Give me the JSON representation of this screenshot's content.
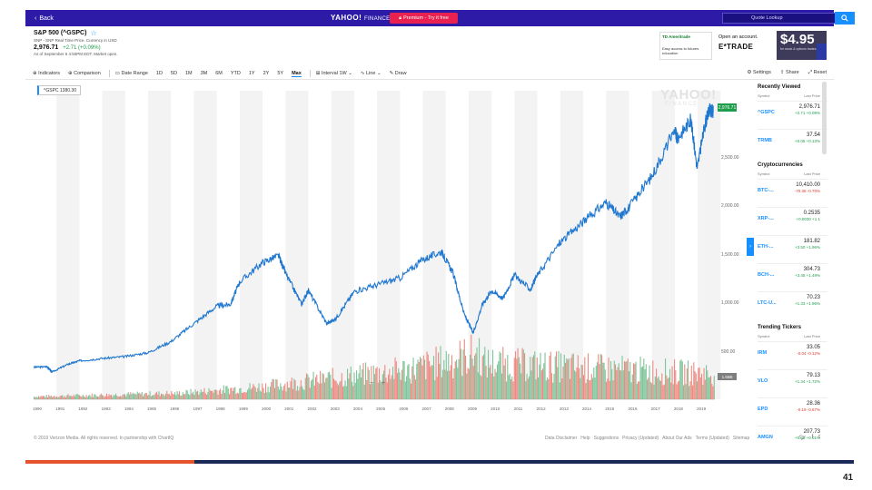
{
  "topbar": {
    "back_label": "Back",
    "logo_text": "YAHOO!",
    "logo_suffix": "FINANCE",
    "premium_label": "Premium - Try it free",
    "search_placeholder": "Quote Lookup"
  },
  "quote": {
    "title": "S&P 500 (^GSPC)",
    "subtitle": "SNP - SNP Real Time Price. Currency in USD",
    "price": "2,976.71",
    "change": "+2.71 (+0.09%)",
    "as_of": "As of September 6 4:50PM EDT. Market open."
  },
  "ads": {
    "ad1_logo": "TD Ameritrade",
    "ad1_text": "Easy access to futures education",
    "ad2_line1": "Open an account.",
    "ad2_brand": "E*TRADE",
    "ad3_price": "$4.95",
    "ad3_note": "for stock & options trades"
  },
  "toolbar": {
    "items": [
      "Indicators",
      "Comparison",
      "Date Range",
      "1D",
      "5D",
      "1M",
      "3M",
      "6M",
      "YTD",
      "1Y",
      "2Y",
      "5Y",
      "Max",
      "Interval 1W",
      "Line",
      "Draw"
    ],
    "active": "Max",
    "right": [
      "Settings",
      "Share",
      "Reset"
    ]
  },
  "chart": {
    "legend_label": "^GSPC 1380.30",
    "watermark_top": "YAHOO!",
    "watermark_bottom": "FINANCE",
    "last_price_tag": "2,976.71",
    "volume_tag": "1.65B",
    "zoom_minus": "−",
    "zoom_plus": "+",
    "expand_glyph": "›"
  },
  "chart_data": {
    "type": "line",
    "title": "",
    "xlabel": "",
    "ylabel": "",
    "x_ticks": [
      "1990",
      "1991",
      "1992",
      "1993",
      "1994",
      "1995",
      "1996",
      "1997",
      "1998",
      "1999",
      "2000",
      "2001",
      "2002",
      "2003",
      "2004",
      "2005",
      "2006",
      "2007",
      "2008",
      "2009",
      "2010",
      "2011",
      "2012",
      "2013",
      "2014",
      "2015",
      "2016",
      "2017",
      "2018",
      "2019"
    ],
    "y_ticks": [
      500,
      1000,
      1500,
      2000,
      2500
    ],
    "y_tick_labels": [
      "500.00",
      "1,000.00",
      "1,500.00",
      "2,000.00",
      "2,500.00"
    ],
    "ylim": [
      300,
      3200
    ],
    "xlim": [
      1990,
      2019.75
    ],
    "series": [
      {
        "x": [
          1990,
          1990.6,
          1990.8,
          1991.5,
          1992,
          1993,
          1994,
          1995,
          1996,
          1997,
          1998,
          1998.6,
          1999,
          2000,
          2000.7,
          2001,
          2001.7,
          2002,
          2002.8,
          2003.2,
          2004,
          2005,
          2006,
          2007,
          2007.8,
          2008.3,
          2008.8,
          2009.2,
          2009.6,
          2010,
          2010.5,
          2011,
          2011.7,
          2012,
          2013,
          2014,
          2015,
          2015.6,
          2016,
          2017,
          2018,
          2018.1,
          2018.7,
          2018.98,
          2019.3,
          2019.5,
          2019.68
        ],
        "values": [
          350,
          355,
          300,
          380,
          415,
          440,
          460,
          500,
          615,
          800,
          980,
          1000,
          1230,
          1430,
          1500,
          1320,
          1000,
          1140,
          800,
          850,
          1130,
          1200,
          1270,
          1460,
          1540,
          1330,
          900,
          700,
          1000,
          1140,
          1060,
          1300,
          1150,
          1300,
          1640,
          1850,
          2050,
          1900,
          2000,
          2320,
          2800,
          2700,
          2900,
          2400,
          2830,
          3000,
          2977
        ]
      }
    ],
    "volume": {
      "note": "daily volume bars, green up / red down, growing through 2000s",
      "ylim": [
        0,
        10
      ]
    },
    "grid": "alternating year bands",
    "legend": "top-left"
  },
  "sidebar": {
    "recently_viewed": {
      "title": "Recently Viewed",
      "head_symbol": "Symbol",
      "head_price": "Last Price",
      "rows": [
        {
          "symbol": "^GSPC",
          "price": "2,976.71",
          "change": "+2.71 +0.09%",
          "dir": "pos"
        },
        {
          "symbol": "TRMB",
          "price": "37.54",
          "change": "+0.05 +0.13%",
          "dir": "pos"
        }
      ]
    },
    "crypto": {
      "title": "Cryptocurrencies",
      "head_symbol": "Symbol",
      "head_price": "Last Price",
      "rows": [
        {
          "symbol": "BTC-...",
          "price": "10,410.00",
          "change": "-70.35 -0.70%",
          "dir": "neg"
        },
        {
          "symbol": "XRP-...",
          "price": "0.2535",
          "change": "+0.0030 +1.1",
          "dir": "pos"
        },
        {
          "symbol": "ETH-...",
          "price": "181.82",
          "change": "+3.50 +1.96%",
          "dir": "pos"
        },
        {
          "symbol": "BCH-...",
          "price": "304.73",
          "change": "+3.45 +1.49%",
          "dir": "pos"
        },
        {
          "symbol": "LTC-U...",
          "price": "70.23",
          "change": "+1.33 +1.96%",
          "dir": "pos"
        }
      ]
    },
    "trending": {
      "title": "Trending Tickers",
      "head_symbol": "Symbol",
      "head_price": "Last Price",
      "rows": [
        {
          "symbol": "IRM",
          "price": "33.05",
          "change": "-0.04 -0.12%",
          "dir": "neg"
        },
        {
          "symbol": "VLO",
          "price": "79.13",
          "change": "+1.34 +1.72%",
          "dir": "pos"
        },
        {
          "symbol": "EPD",
          "price": "28.36",
          "change": "-0.19 -0.67%",
          "dir": "neg"
        },
        {
          "symbol": "AMGN",
          "price": "207.73",
          "change": "+0.00 +0.01%",
          "dir": "pos"
        }
      ]
    }
  },
  "footer": {
    "copyright": "© 2019 Verizon Media. All rights reserved. In partnership with ChartIQ",
    "links": [
      "Data Disclaimer",
      "Help",
      "Suggestions",
      "Privacy (Updated)",
      "About Our Ads",
      "Terms (Updated)",
      "Sitemap"
    ]
  },
  "slide": {
    "page_number": "41",
    "accent": "#e4542c",
    "navy": "#1a2a57"
  }
}
